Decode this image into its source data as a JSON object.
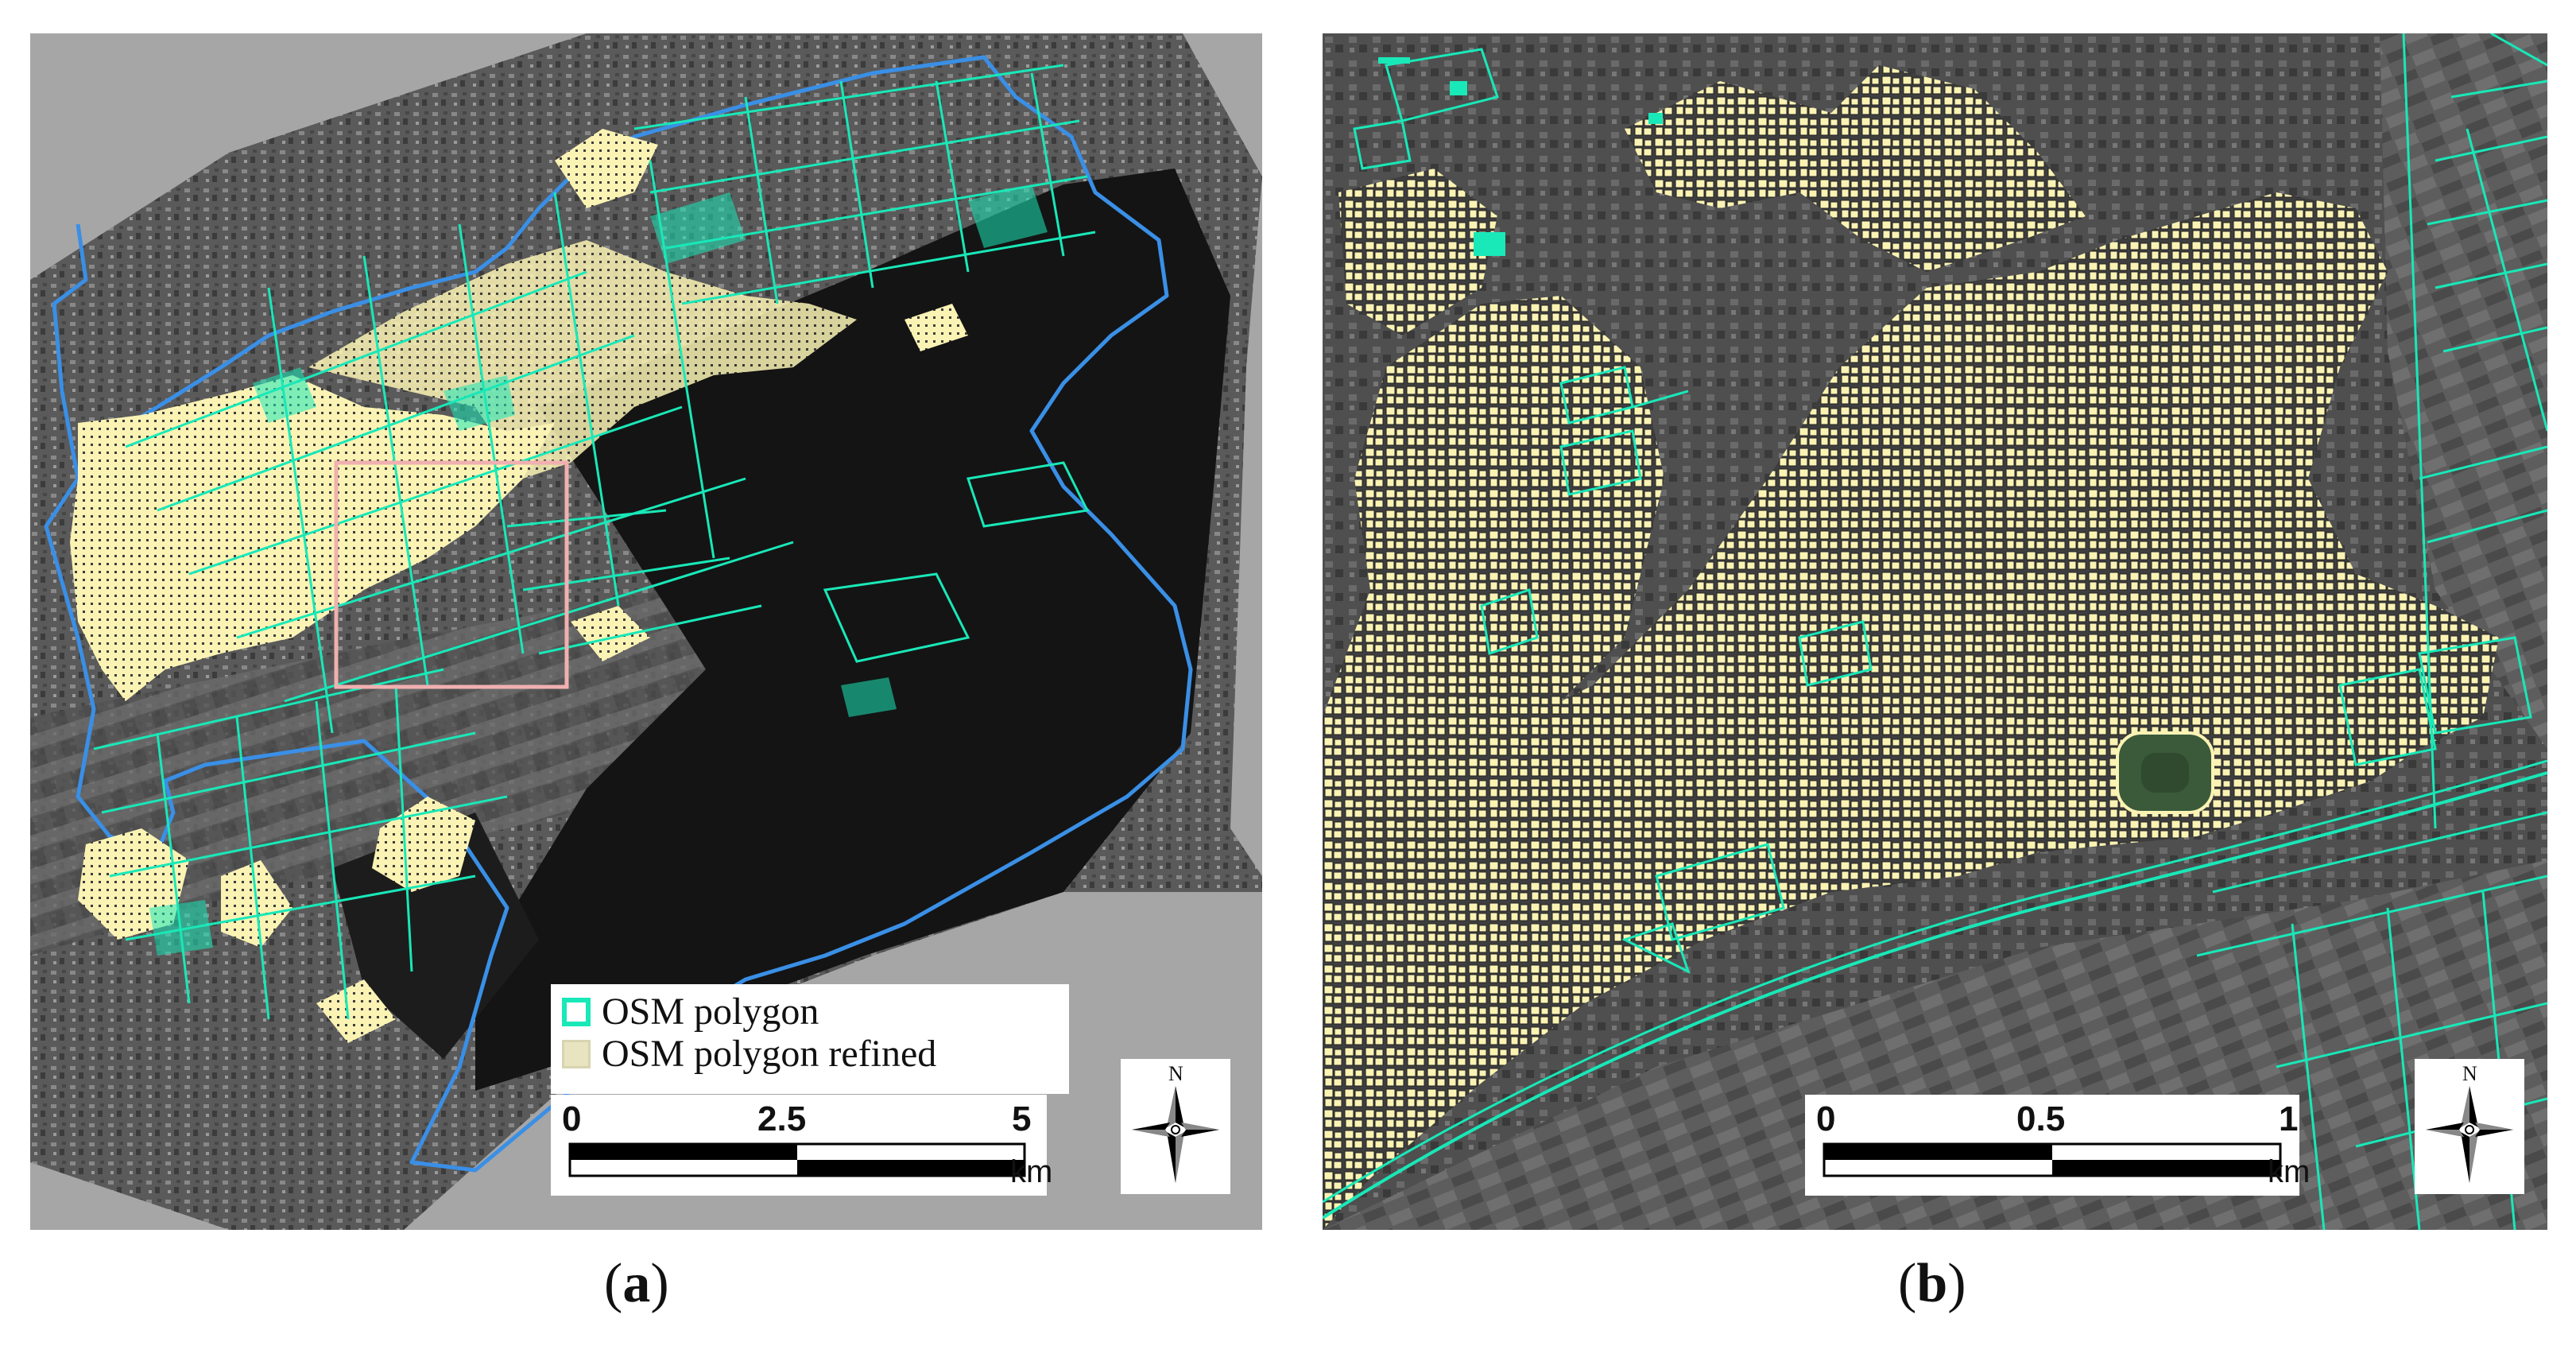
{
  "panel_a": {
    "legend": {
      "items": [
        {
          "label": "OSM polygon",
          "swatch": "outline",
          "color": "#19e8b8"
        },
        {
          "label": "OSM polygon  refined",
          "swatch": "fill",
          "color": "#e9e4c0"
        }
      ]
    },
    "scalebar": {
      "ticks": [
        "0",
        "2.5",
        "5"
      ],
      "unit": "km"
    },
    "north_label": "N",
    "caption_letter": "a"
  },
  "panel_b": {
    "scalebar": {
      "ticks": [
        "0",
        "0.5",
        "1"
      ],
      "unit": "km"
    },
    "north_label": "N",
    "caption_letter": "b"
  },
  "colors": {
    "osm_polygon_outline": "#19e8b8",
    "refined_fill": "#fbf3b4",
    "boundary": "#3a8fe6",
    "inset_box": "#f0b0b0"
  },
  "icons": [
    "north-arrow-icon"
  ]
}
